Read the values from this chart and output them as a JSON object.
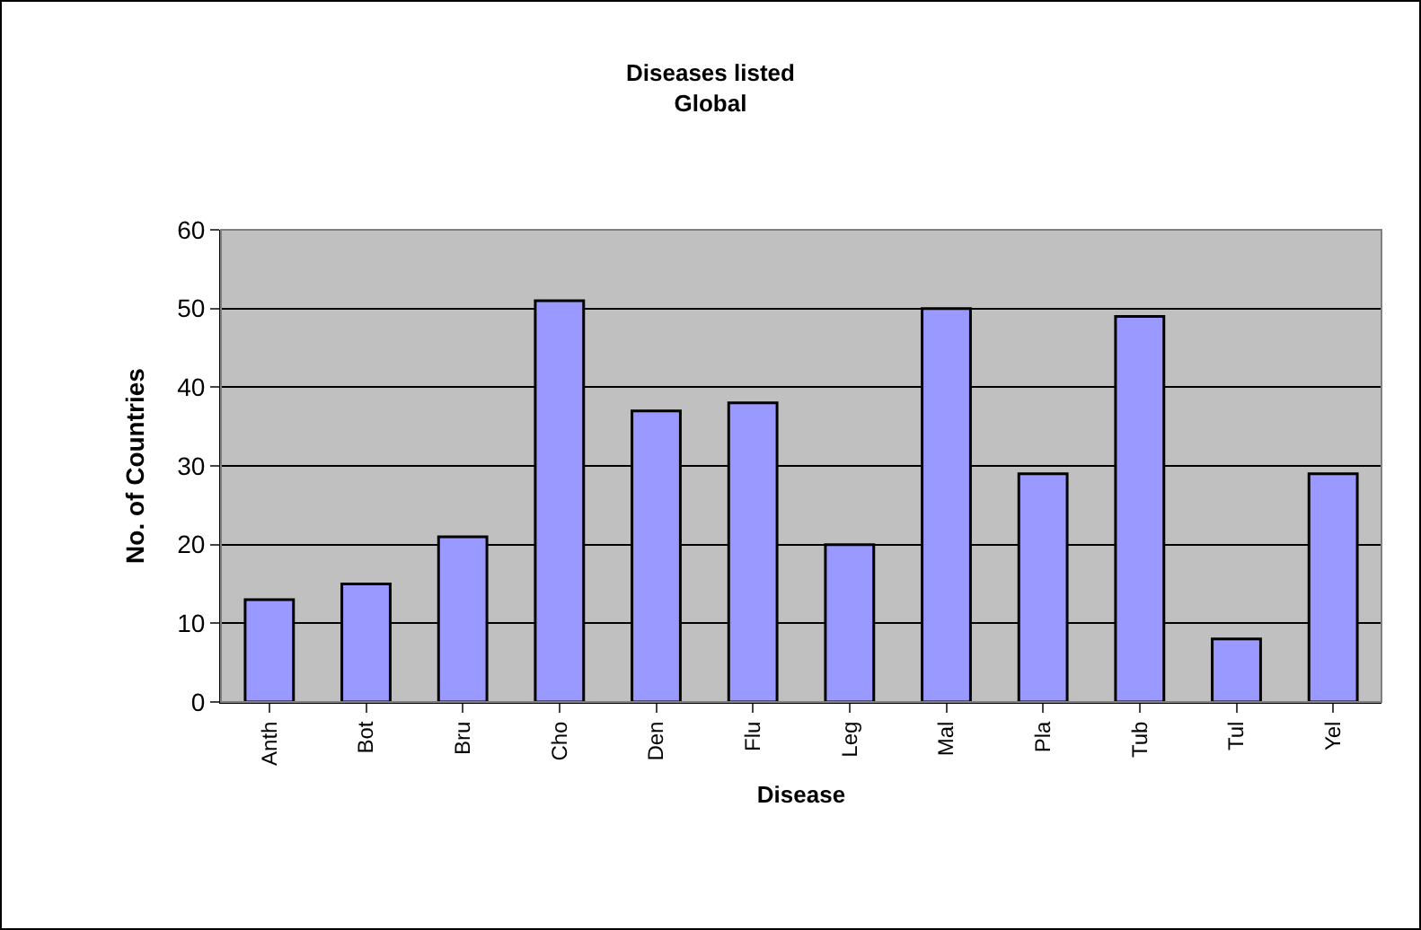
{
  "chart_data": {
    "type": "bar",
    "title": "Diseases listed\nGlobal",
    "xlabel": "Disease",
    "ylabel": "No. of Countries",
    "categories": [
      "Anth",
      "Bot",
      "Bru",
      "Cho",
      "Den",
      "Flu",
      "Leg",
      "Mal",
      "Pla",
      "Tub",
      "Tul",
      "Yel"
    ],
    "values": [
      13,
      15,
      21,
      51,
      37,
      38,
      20,
      50,
      29,
      49,
      8,
      29
    ],
    "color": "#9999ff",
    "ylim": [
      0,
      60
    ],
    "yticks": [
      0,
      10,
      20,
      30,
      40,
      50,
      60
    ],
    "grid": "y",
    "legend": false
  }
}
